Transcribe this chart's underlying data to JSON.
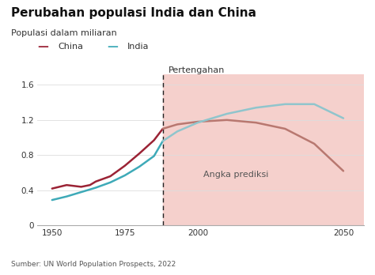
{
  "title": "Perubahan populasi India dan China",
  "subtitle": "Populasi dalam miliaran",
  "source": "Sumber: UN World Population Prospects, 2022",
  "divider_year": 1988,
  "prediction_label": "Angka prediksi",
  "midpoint_label": "Pertengahan",
  "xlim": [
    1945,
    2057
  ],
  "ylim": [
    0,
    1.72
  ],
  "xticks": [
    1950,
    1975,
    2000,
    2050
  ],
  "yticks": [
    0,
    0.4,
    0.8,
    1.2,
    1.6
  ],
  "background_color": "#ffffff",
  "prediction_bg": "#f5d0cc",
  "china_color_hist": "#9b2335",
  "china_color_pred": "#b87870",
  "india_color_hist": "#3eaab8",
  "india_color_pred": "#90c5cc",
  "china_years_hist": [
    1950,
    1955,
    1960,
    1963,
    1965,
    1970,
    1975,
    1980,
    1985,
    1988
  ],
  "china_pop_hist": [
    0.42,
    0.46,
    0.44,
    0.46,
    0.5,
    0.56,
    0.68,
    0.82,
    0.97,
    1.1
  ],
  "china_years_pred": [
    1988,
    1993,
    2000,
    2010,
    2020,
    2030,
    2040,
    2050
  ],
  "china_pop_pred": [
    1.1,
    1.15,
    1.18,
    1.2,
    1.17,
    1.1,
    0.93,
    0.62
  ],
  "india_years_hist": [
    1950,
    1955,
    1960,
    1965,
    1970,
    1975,
    1980,
    1985,
    1988
  ],
  "india_pop_hist": [
    0.29,
    0.33,
    0.38,
    0.43,
    0.49,
    0.57,
    0.67,
    0.79,
    0.96
  ],
  "india_years_pred": [
    1988,
    1993,
    2000,
    2010,
    2020,
    2030,
    2040,
    2050
  ],
  "india_pop_pred": [
    0.96,
    1.07,
    1.17,
    1.27,
    1.34,
    1.38,
    1.38,
    1.22
  ]
}
